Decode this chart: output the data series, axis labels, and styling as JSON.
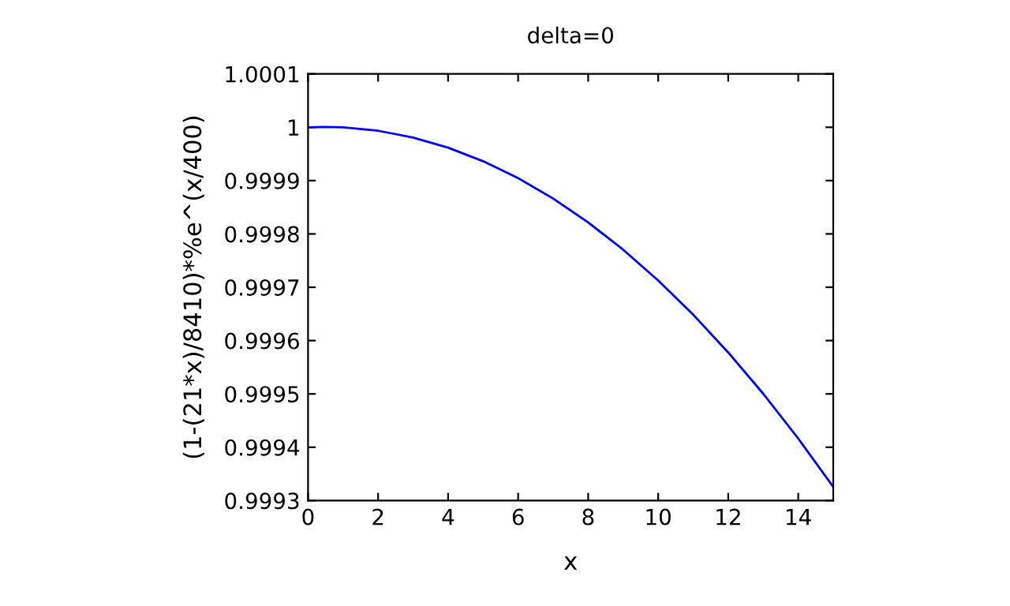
{
  "chart_data": {
    "type": "line",
    "title": "delta=0",
    "xlabel": "x",
    "ylabel": "(1-(21*x)/8410)*%e^(x/400)",
    "x": [
      0,
      0.5,
      1,
      2,
      3,
      4,
      5,
      6,
      7,
      8,
      9,
      10,
      11,
      12,
      13,
      14,
      15
    ],
    "series": [
      {
        "color": "#0000ff",
        "values": [
          1,
          1.0000007,
          0.9999998,
          0.9999934,
          0.9999807,
          0.9999617,
          0.9999363,
          0.9999045,
          0.9998663,
          0.9998216,
          0.9997704,
          0.9997127,
          0.9996485,
          0.9995777,
          0.9995003,
          0.9994163,
          0.9993255
        ]
      }
    ],
    "xlim": [
      0,
      15
    ],
    "xticks": [
      0,
      2,
      4,
      6,
      8,
      10,
      12,
      14
    ],
    "ylim": [
      0.9993,
      1.0001
    ],
    "yticks": [
      0.9993,
      0.9994,
      0.9995,
      0.9996,
      0.9997,
      0.9998,
      0.9999,
      1,
      1.0001
    ],
    "grid": false,
    "legend": false,
    "marker": "none",
    "line_style": "solid"
  }
}
